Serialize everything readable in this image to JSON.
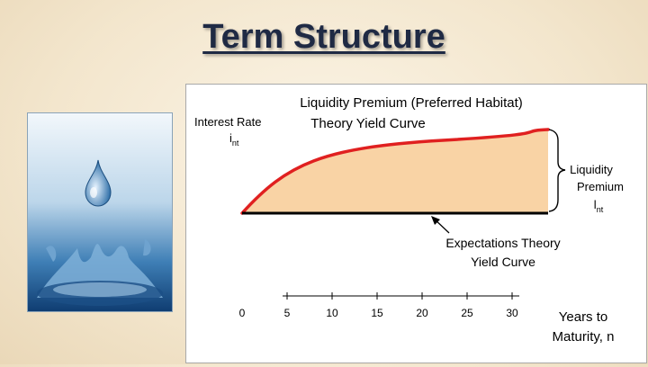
{
  "slide": {
    "title": "Term Structure"
  },
  "illustration": {
    "name": "water-drop-splash-photo"
  },
  "chart": {
    "title_line1": "Liquidity Premium (Preferred Habitat)",
    "title_line2": "Theory Yield Curve",
    "y_axis_label": "Interest Rate",
    "y_axis_symbol": "i",
    "y_axis_symbol_sub": "nt",
    "x_axis_label_line1": "Years to",
    "x_axis_label_line2": "Maturity, n",
    "bracket_label_line1": "Liquidity",
    "bracket_label_line2": "Premium",
    "bracket_label_symbol": "l",
    "bracket_label_symbol_sub": "nt",
    "expectations_label_line1": "Expectations Theory",
    "expectations_label_line2": "Yield Curve",
    "colors": {
      "liquidity_curve": "#e02020",
      "premium_fill": "#f9d3a5",
      "axis": "#000000"
    }
  },
  "chart_data": {
    "type": "area",
    "x_ticks": [
      0,
      5,
      10,
      15,
      20,
      25,
      30
    ],
    "x_tick_labels": [
      "0",
      "5",
      "10",
      "15",
      "20",
      "25",
      "30"
    ],
    "xlim": [
      0,
      33
    ],
    "series": [
      {
        "name": "Liquidity Premium (Preferred Habitat) Theory Yield Curve",
        "shape": "concave-rising",
        "x": [
          0,
          33
        ],
        "y_start": 0,
        "y_end": 1
      },
      {
        "name": "Expectations Theory Yield Curve",
        "shape": "flat",
        "x": [
          0,
          33
        ],
        "y": 0
      }
    ],
    "grid": false,
    "legend": "none"
  }
}
